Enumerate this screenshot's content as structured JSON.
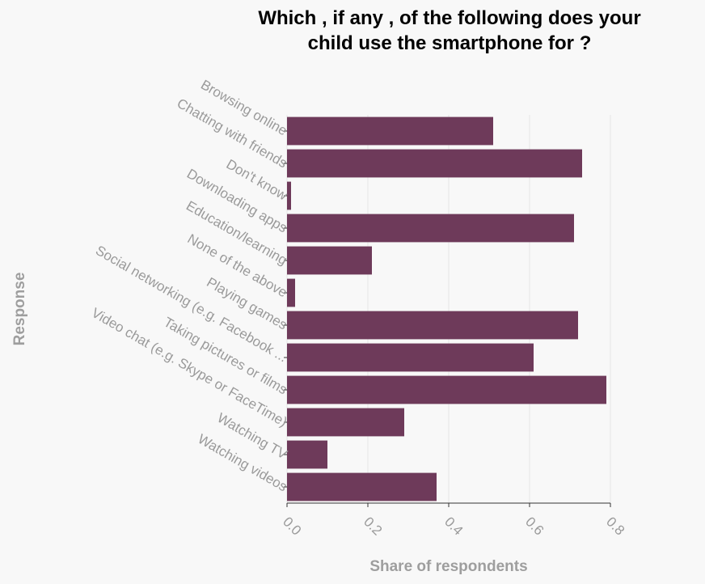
{
  "chart_data": {
    "type": "bar",
    "orientation": "horizontal",
    "title": "Which , if any , of the following does your child use the smartphone for ?",
    "title_lines": [
      "Which , if any , of the following does your",
      "child use the smartphone for ?"
    ],
    "xlabel": "Share of respondents",
    "ylabel": "Response",
    "categories": [
      "Browsing online",
      "Chatting with friends",
      "Don't know",
      "Downloading apps",
      "Education/learning",
      "None of the above",
      "Playing games",
      "Social networking (e.g. Facebook ...",
      "Taking pictures or films",
      "Video chat (e.g. Skype or FaceTime)",
      "Watching TV",
      "Watching videos"
    ],
    "values": [
      0.51,
      0.73,
      0.01,
      0.71,
      0.21,
      0.02,
      0.72,
      0.61,
      0.79,
      0.29,
      0.1,
      0.37
    ],
    "xlim": [
      0,
      0.8
    ],
    "x_ticks": [
      0.0,
      0.2,
      0.4,
      0.6,
      0.8
    ],
    "x_tick_labels": [
      "0.0",
      "0.2",
      "0.4",
      "0.6",
      "0.8"
    ],
    "grid": true,
    "legend": "none",
    "bar_color": "#6e3a5a"
  }
}
